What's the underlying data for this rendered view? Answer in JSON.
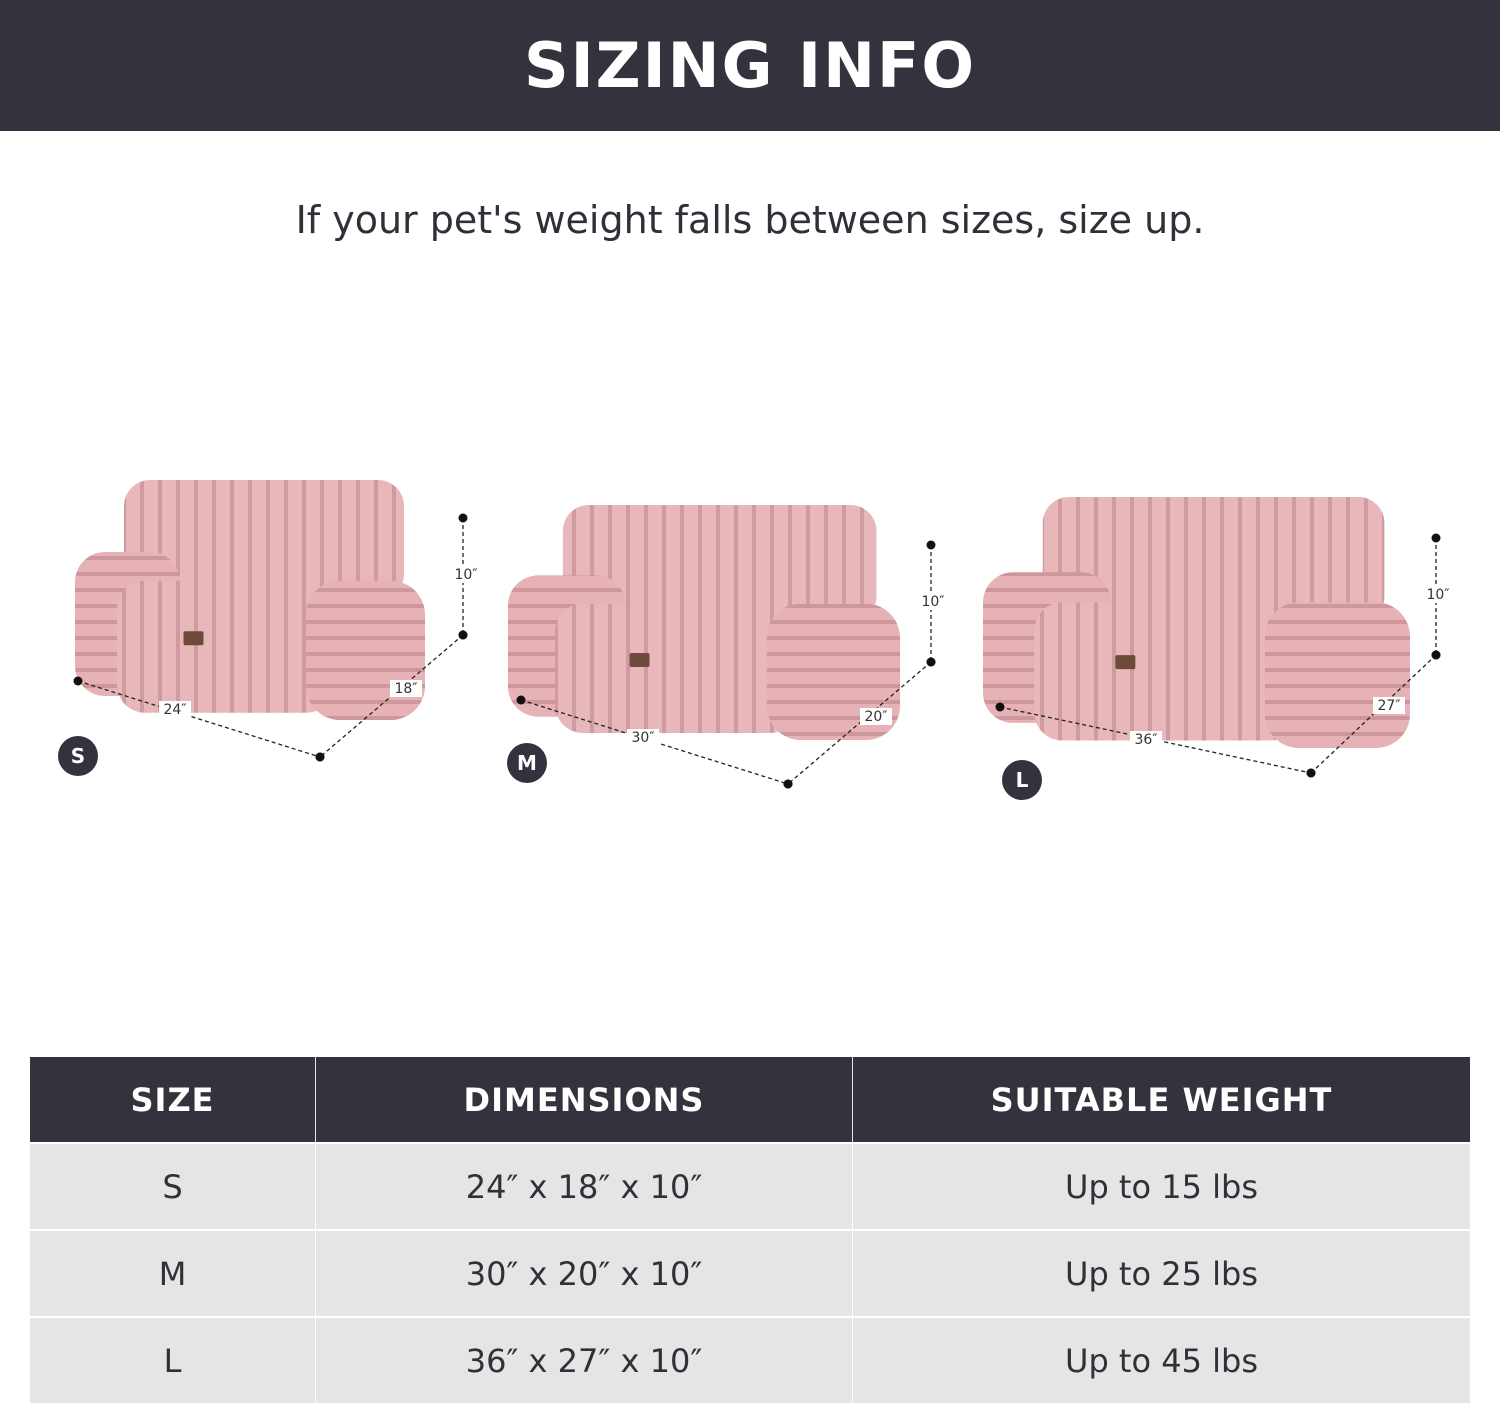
{
  "header": {
    "title": "SIZING INFO"
  },
  "subtitle": "If your pet's weight falls between sizes, size up.",
  "colors": {
    "banner": "#32333d",
    "bed": "#e6b3b6",
    "row": "#e5e5e5"
  },
  "beds": [
    {
      "size": "S",
      "width": "24″",
      "depth": "18″",
      "height": "10″"
    },
    {
      "size": "M",
      "width": "30″",
      "depth": "20″",
      "height": "10″"
    },
    {
      "size": "L",
      "width": "36″",
      "depth": "27″",
      "height": "10″"
    }
  ],
  "table": {
    "headers": [
      "SIZE",
      "DIMENSIONS",
      "SUITABLE WEIGHT"
    ],
    "rows": [
      [
        "S",
        "24″ x 18″ x 10″",
        "Up to 15 lbs"
      ],
      [
        "M",
        "30″ x 20″ x 10″",
        "Up to 25 lbs"
      ],
      [
        "L",
        "36″ x 27″ x 10″",
        "Up to 45 lbs"
      ]
    ]
  }
}
